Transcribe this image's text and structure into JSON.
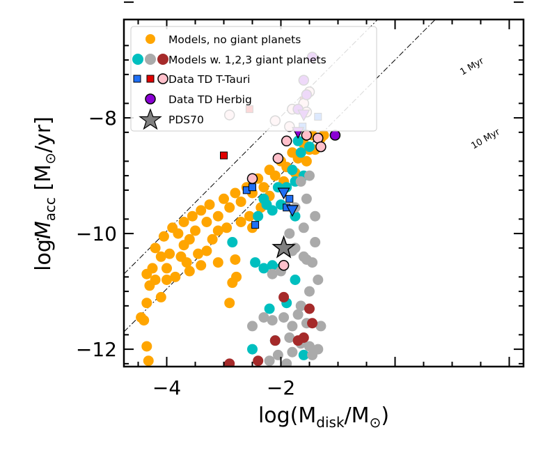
{
  "chart_data": {
    "type": "scatter",
    "xlabel": "log(M_disk/M_⊙)",
    "ylabel": "logṀ_acc [M_⊙/yr]",
    "xlabel_parts": {
      "pre": "log(M",
      "sub": "disk",
      "post": "/M",
      "post2": ")"
    },
    "ylabel_parts": {
      "pre": "log",
      "M": "M",
      "sub": "acc",
      "post": " [M",
      "post2": "/yr]"
    },
    "sun_symbol": "⊙",
    "xlim": [
      -4.75,
      2.25
    ],
    "ylim": [
      -12.3,
      -6.3
    ],
    "xticks": [
      -4,
      -2
    ],
    "yticks": [
      -12,
      -10,
      -8
    ],
    "xtick_labels": [
      "−4",
      "−2"
    ],
    "ytick_labels": [
      "−12",
      "−10",
      "−8"
    ],
    "colors": {
      "models_no": "#ffa500",
      "cyan": "#00bfbf",
      "gray": "#aaaaaa",
      "brown": "#a52a2a",
      "tt_blue": "#1e6ff5",
      "tt_red": "#e00000",
      "pink": "#ffc0cb",
      "herbig": "#8a00d4",
      "pds70": "#808080"
    },
    "legend": {
      "location": "upper-left",
      "entries": [
        {
          "label": "Models, no giant planets",
          "markers": [
            "orange-circle"
          ]
        },
        {
          "label": "Models w. 1,2,3 giant planets",
          "markers": [
            "cyan-circle",
            "gray-circle",
            "brown-circle"
          ]
        },
        {
          "label": "Data TD T-Tauri",
          "markers": [
            "blue-square",
            "red-square",
            "pink-circle"
          ]
        },
        {
          "label": "Data TD Herbig",
          "markers": [
            "purple-circle"
          ]
        },
        {
          "label": "PDS70",
          "markers": [
            "gray-star"
          ]
        }
      ]
    },
    "lines": [
      {
        "label": "1 Myr",
        "x0": -4.75,
        "y0": -10.7,
        "slope": 0.99
      },
      {
        "label": "10 Myr",
        "x0": -4.75,
        "y0": -11.7,
        "slope": 0.99
      }
    ],
    "series": [
      {
        "name": "Models, no giant planets",
        "marker": "circle",
        "color": "#ffa500",
        "points": [
          [
            -4.32,
            -12.2
          ],
          [
            -4.35,
            -11.95
          ],
          [
            -4.4,
            -11.5
          ],
          [
            -4.45,
            -11.45
          ],
          [
            -4.35,
            -11.2
          ],
          [
            -4.1,
            -11.1
          ],
          [
            -4.3,
            -10.9
          ],
          [
            -4.35,
            -10.7
          ],
          [
            -4.25,
            -10.6
          ],
          [
            -4.0,
            -10.8
          ],
          [
            -3.85,
            -10.75
          ],
          [
            -3.6,
            -10.65
          ],
          [
            -3.4,
            -10.55
          ],
          [
            -2.8,
            -10.45
          ],
          [
            -3.1,
            -10.5
          ],
          [
            -2.9,
            -11.2
          ],
          [
            -2.85,
            -10.85
          ],
          [
            -2.78,
            -10.75
          ],
          [
            -3.3,
            -10.3
          ],
          [
            -3.6,
            -10.1
          ],
          [
            -3.8,
            -10.0
          ],
          [
            -4.05,
            -10.05
          ],
          [
            -4.2,
            -10.25
          ],
          [
            -4.1,
            -10.4
          ],
          [
            -3.95,
            -10.35
          ],
          [
            -3.7,
            -10.2
          ],
          [
            -3.5,
            -9.95
          ],
          [
            -3.3,
            -9.8
          ],
          [
            -3.1,
            -9.7
          ],
          [
            -2.9,
            -9.55
          ],
          [
            -2.7,
            -9.45
          ],
          [
            -2.5,
            -9.3
          ],
          [
            -2.3,
            -9.2
          ],
          [
            -2.1,
            -9.0
          ],
          [
            -1.9,
            -8.85
          ],
          [
            -1.7,
            -8.7
          ],
          [
            -1.5,
            -8.55
          ],
          [
            -1.3,
            -8.35
          ],
          [
            -1.25,
            -8.3
          ],
          [
            -3.9,
            -9.9
          ],
          [
            -3.7,
            -9.8
          ],
          [
            -3.55,
            -9.7
          ],
          [
            -3.4,
            -9.6
          ],
          [
            -3.25,
            -9.5
          ],
          [
            -3.0,
            -9.4
          ],
          [
            -2.8,
            -9.3
          ],
          [
            -2.6,
            -9.2
          ],
          [
            -2.4,
            -9.05
          ],
          [
            -2.2,
            -8.9
          ],
          [
            -2.0,
            -8.75
          ],
          [
            -1.8,
            -8.6
          ],
          [
            -1.6,
            -8.45
          ],
          [
            -1.45,
            -8.3
          ],
          [
            -3.45,
            -10.35
          ],
          [
            -3.65,
            -10.5
          ],
          [
            -4.0,
            -10.6
          ],
          [
            -3.2,
            -10.1
          ],
          [
            -2.7,
            -9.8
          ],
          [
            -2.55,
            -9.7
          ],
          [
            -2.35,
            -9.55
          ],
          [
            -2.5,
            -9.9
          ],
          [
            -2.2,
            -9.35
          ],
          [
            -1.95,
            -9.1
          ],
          [
            -1.75,
            -8.95
          ],
          [
            -1.55,
            -8.75
          ],
          [
            -1.4,
            -8.55
          ],
          [
            -3.75,
            -10.4
          ],
          [
            -4.2,
            -10.8
          ],
          [
            -2.95,
            -9.9
          ],
          [
            -3.1,
            -9.95
          ]
        ]
      },
      {
        "name": "Models w. 1 giant planet",
        "marker": "circle",
        "color": "#00bfbf",
        "points": [
          [
            -2.85,
            -10.15
          ],
          [
            -2.45,
            -10.5
          ],
          [
            -2.3,
            -10.6
          ],
          [
            -2.15,
            -10.55
          ],
          [
            -2.0,
            -10.6
          ],
          [
            -2.2,
            -11.3
          ],
          [
            -2.1,
            -11.85
          ],
          [
            -1.9,
            -11.2
          ],
          [
            -1.75,
            -10.8
          ],
          [
            -2.3,
            -9.4
          ],
          [
            -2.15,
            -9.6
          ],
          [
            -2.0,
            -9.5
          ],
          [
            -1.9,
            -9.2
          ],
          [
            -1.75,
            -9.1
          ],
          [
            -1.6,
            -9.0
          ],
          [
            -1.8,
            -8.9
          ],
          [
            -1.65,
            -8.6
          ],
          [
            -1.5,
            -8.5
          ],
          [
            -2.05,
            -9.2
          ],
          [
            -2.25,
            -9.5
          ],
          [
            -2.4,
            -9.7
          ],
          [
            -1.7,
            -8.4
          ],
          [
            -1.55,
            -8.3
          ],
          [
            -2.5,
            -12.0
          ],
          [
            -1.6,
            -12.1
          ],
          [
            -1.75,
            -9.7
          ]
        ]
      },
      {
        "name": "Models w. 2 giant planets",
        "marker": "circle",
        "color": "#aaaaaa",
        "points": [
          [
            -2.5,
            -11.6
          ],
          [
            -2.3,
            -11.45
          ],
          [
            -2.15,
            -11.5
          ],
          [
            -1.95,
            -11.45
          ],
          [
            -1.8,
            -11.6
          ],
          [
            -1.65,
            -11.25
          ],
          [
            -1.5,
            -11.0
          ],
          [
            -1.35,
            -10.8
          ],
          [
            -1.55,
            -10.45
          ],
          [
            -1.75,
            -10.25
          ],
          [
            -1.45,
            -10.5
          ],
          [
            -1.4,
            -10.15
          ],
          [
            -1.6,
            -9.9
          ],
          [
            -1.75,
            -9.55
          ],
          [
            -1.55,
            -9.4
          ],
          [
            -1.4,
            -9.7
          ],
          [
            -1.65,
            -9.1
          ],
          [
            -1.5,
            -9.0
          ],
          [
            -2.0,
            -10.65
          ],
          [
            -2.15,
            -10.7
          ],
          [
            -1.7,
            -11.4
          ],
          [
            -1.85,
            -11.8
          ],
          [
            -2.05,
            -12.1
          ],
          [
            -2.2,
            -12.2
          ],
          [
            -1.9,
            -12.25
          ],
          [
            -1.8,
            -12.05
          ],
          [
            -1.65,
            -11.9
          ],
          [
            -1.55,
            -11.55
          ],
          [
            -1.5,
            -11.95
          ],
          [
            -1.35,
            -12.0
          ],
          [
            -1.3,
            -11.6
          ],
          [
            -1.8,
            -10.3
          ],
          [
            -1.85,
            -10.0
          ],
          [
            -1.6,
            -10.4
          ],
          [
            -1.45,
            -12.1
          ]
        ]
      },
      {
        "name": "Models w. 3 giant planets",
        "marker": "circle",
        "color": "#a52a2a",
        "points": [
          [
            -2.9,
            -12.25
          ],
          [
            -2.4,
            -12.2
          ],
          [
            -2.1,
            -11.85
          ],
          [
            -1.95,
            -11.1
          ],
          [
            -1.7,
            -11.85
          ],
          [
            -1.6,
            -11.8
          ],
          [
            -1.45,
            -11.55
          ],
          [
            -1.5,
            -11.3
          ]
        ]
      },
      {
        "name": "Data TD T-Tauri (blue)",
        "marker": "square",
        "color": "#1e6ff5",
        "points": [
          [
            -2.6,
            -9.25
          ],
          [
            -2.5,
            -9.2
          ],
          [
            -2.45,
            -9.85
          ],
          [
            -1.62,
            -8.15
          ],
          [
            -1.35,
            -7.98
          ],
          [
            -1.85,
            -9.4
          ],
          [
            -1.9,
            -9.55
          ]
        ]
      },
      {
        "name": "Data TD T-Tauri (red)",
        "marker": "square",
        "color": "#e00000",
        "points": [
          [
            -3.0,
            -8.65
          ],
          [
            -2.55,
            -7.85
          ],
          [
            -1.6,
            -7.7
          ]
        ]
      },
      {
        "name": "Data TD T-Tauri (pink)",
        "marker": "circle",
        "color": "#ffc0cb",
        "points": [
          [
            -2.9,
            -7.95
          ],
          [
            -2.5,
            -9.05
          ],
          [
            -2.1,
            -8.05
          ],
          [
            -2.05,
            -8.7
          ],
          [
            -1.9,
            -8.4
          ],
          [
            -1.85,
            -8.15
          ],
          [
            -1.8,
            -7.85
          ],
          [
            -1.6,
            -7.75
          ],
          [
            -1.55,
            -7.9
          ],
          [
            -1.5,
            -7.55
          ],
          [
            -1.55,
            -8.3
          ],
          [
            -1.35,
            -8.35
          ],
          [
            -1.3,
            -8.5
          ],
          [
            -1.95,
            -10.55
          ]
        ]
      },
      {
        "name": "Data TD Herbig",
        "marker": "circle",
        "color": "#8a00d4",
        "points": [
          [
            -1.45,
            -6.95
          ],
          [
            -1.6,
            -7.35
          ],
          [
            -1.05,
            -8.3
          ],
          [
            -1.55,
            -7.6
          ],
          [
            -1.7,
            -7.85
          ]
        ]
      },
      {
        "name": "Data TD Herbig (upper limits)",
        "marker": "triangle-down",
        "color": "#8a00d4",
        "points": [
          [
            -1.6,
            -7.95
          ],
          [
            -1.7,
            -8.25
          ]
        ]
      },
      {
        "name": "Data TD T-Tauri (upper limits)",
        "marker": "triangle-down",
        "color": "#1e6ff5",
        "points": [
          [
            -1.95,
            -9.3
          ],
          [
            -1.8,
            -9.6
          ]
        ]
      },
      {
        "name": "PDS70",
        "marker": "star",
        "color": "#808080",
        "points": [
          [
            -1.95,
            -10.25
          ]
        ]
      }
    ],
    "annotations": [
      "1 Myr",
      "10 Myr"
    ]
  }
}
